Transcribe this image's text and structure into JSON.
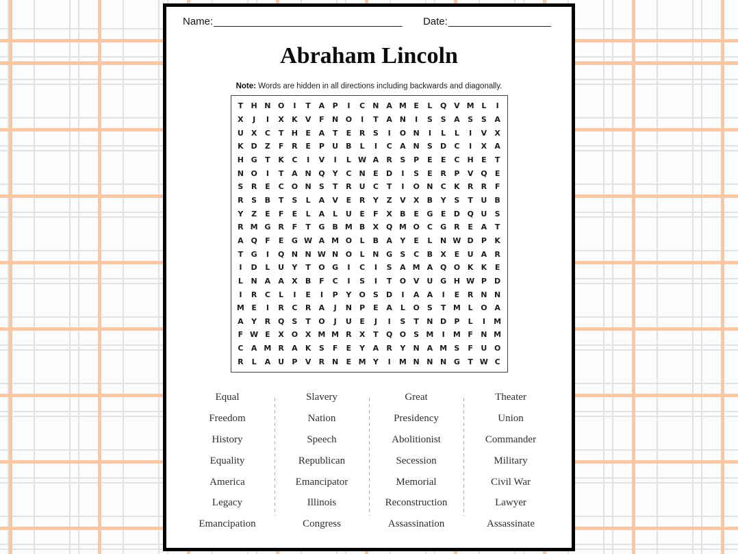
{
  "page": {
    "header": {
      "name_label": "Name:",
      "name_line": "_________________________________",
      "date_label": "Date:",
      "date_line": "__________________"
    },
    "title": "Abraham Lincoln",
    "note": {
      "label": "Note:",
      "text": "Words are hidden in all directions including backwards and diagonally."
    },
    "grid": {
      "rows": [
        "THNOITAPICNAMELQVMLI",
        "XJIXKVFNOITANISSASSA",
        "UXCTHEATERSIONILLIVX",
        "KDZFREPUBLICANSDCIXA",
        "HGTKCIVILWARSPEECHET",
        "NOITANQYCNEDISERPVQE",
        "SRECONSTRUCTIONCKRRF",
        "RSBTSLAVERYZVXBYSTUB",
        "YZEFELALUEFXBEGEDQUS",
        "RMGRFTGBMBXQMOCGREAT",
        "AQFEGWAMOLBAYELNWDPK",
        "TGIQNNWNOLNGSCBXEUAR",
        "IDLUYTOGICISAMAQOKKE",
        "LNAAXBFCISITOVUGHWPD",
        "IRCLIEIPYOSDIAAIERNN",
        "MEIRCRAJNPEALOSTMLOA",
        "AYRQSTOJUEJISTNDPLIM",
        "FWEXOXMMRXTQOSMIMFNM",
        "CAMRAKSFEYARYNAMSFUO",
        "RLAUPVRNEMYIMNNNGTWC"
      ]
    },
    "word_list": {
      "columns": [
        [
          "Equal",
          "Freedom",
          "History",
          "Equality",
          "America",
          "Legacy",
          "Emancipation"
        ],
        [
          "Slavery",
          "Nation",
          "Speech",
          "Republican",
          "Emancipator",
          "Illinois",
          "Congress"
        ],
        [
          "Great",
          "Presidency",
          "Abolitionist",
          "Secession",
          "Memorial",
          "Reconstruction",
          "Assassination"
        ],
        [
          "Theater",
          "Union",
          "Commander",
          "Military",
          "Civil War",
          "Lawyer",
          "Assassinate"
        ]
      ]
    }
  },
  "colors": {
    "plaid_orange": "#f9c7a2",
    "plaid_gray": "#e3e1e4",
    "page_border": "#050505",
    "page_background": "#ffffff"
  }
}
